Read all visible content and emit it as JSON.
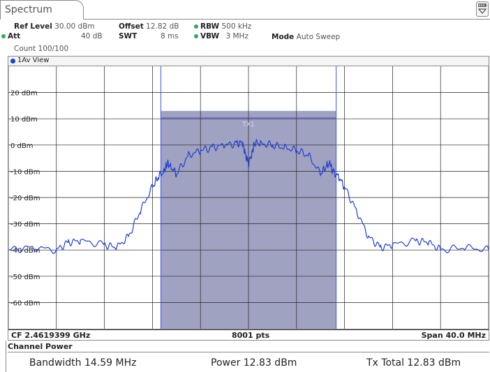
{
  "tab": {
    "label": "Spectrum"
  },
  "header": {
    "ref_level_label": "Ref Level",
    "ref_level_value": "30.00 dBm",
    "att_label": "Att",
    "att_value": "40 dB",
    "count": "Count 100/100",
    "offset_label": "Offset",
    "offset_value": "12.82 dB",
    "swt_label": "SWT",
    "swt_value": "8 ms",
    "rbw_label": "RBW",
    "rbw_value": "500 kHz",
    "vbw_label": "VBW",
    "vbw_value": "3 MHz",
    "mode_label": "Mode",
    "mode_value": "Auto Sweep"
  },
  "view": {
    "label": "1Av View"
  },
  "footer": {
    "cf": "CF 2.4619399 GHz",
    "pts": "8001 pts",
    "span": "Span 40.0 MHz"
  },
  "channel_power": {
    "title": "Channel Power",
    "bandwidth": "Bandwidth  14.59 MHz",
    "power": "Power  12.83 dBm",
    "tx_total": "Tx Total  12.83 dBm"
  },
  "colors": {
    "trace": "#1f3fd1",
    "channel_fill": "#a0a2c2",
    "channel_line": "#4457d8",
    "status_dot": "#32a85a"
  },
  "chart_data": {
    "type": "line",
    "y_tick_labels": [
      "20 dBm",
      "10 dBm",
      "0 dBm",
      "-10 dBm",
      "-20 dBm",
      "-30 dBm",
      "-40 dBm",
      "-50 dBm",
      "-60 dBm"
    ],
    "y_ticks": [
      20,
      10,
      0,
      -10,
      -20,
      -30,
      -40,
      -50,
      -60
    ],
    "ylim": [
      -70,
      30
    ],
    "x_range_mhz": [
      -20,
      20
    ],
    "x_divisions": 10,
    "channel": {
      "label": "TX1",
      "start_mhz": -7.3,
      "stop_mhz": 7.3,
      "level_dbm": 13
    },
    "series": [
      {
        "x_mhz": [
          -20,
          -18,
          -16,
          -15,
          -14,
          -12,
          -11,
          -10,
          -9,
          -8,
          -7.5,
          -7,
          -6.8,
          -6.5,
          -6,
          -5,
          -4,
          -3,
          -2,
          -1,
          -0.5,
          -0.3,
          0,
          0.3,
          0.5,
          1,
          2,
          3,
          4,
          5,
          6,
          6.5,
          6.8,
          7,
          7.5,
          8,
          9,
          10,
          11,
          12,
          14,
          15,
          16,
          18,
          20
        ],
        "y_dbm": [
          -40,
          -39,
          -40,
          -37,
          -36.5,
          -38,
          -39,
          -35,
          -25,
          -16,
          -12,
          -10,
          -7,
          -8,
          -11,
          -4,
          -2,
          -1,
          0,
          0.5,
          1,
          -3,
          -7,
          -3,
          1,
          0.5,
          0,
          -1,
          -2,
          -4,
          -11,
          -8,
          -7,
          -10,
          -12,
          -16,
          -25,
          -35,
          -39,
          -38,
          -36.5,
          -37,
          -40,
          -39,
          -40
        ]
      }
    ]
  }
}
